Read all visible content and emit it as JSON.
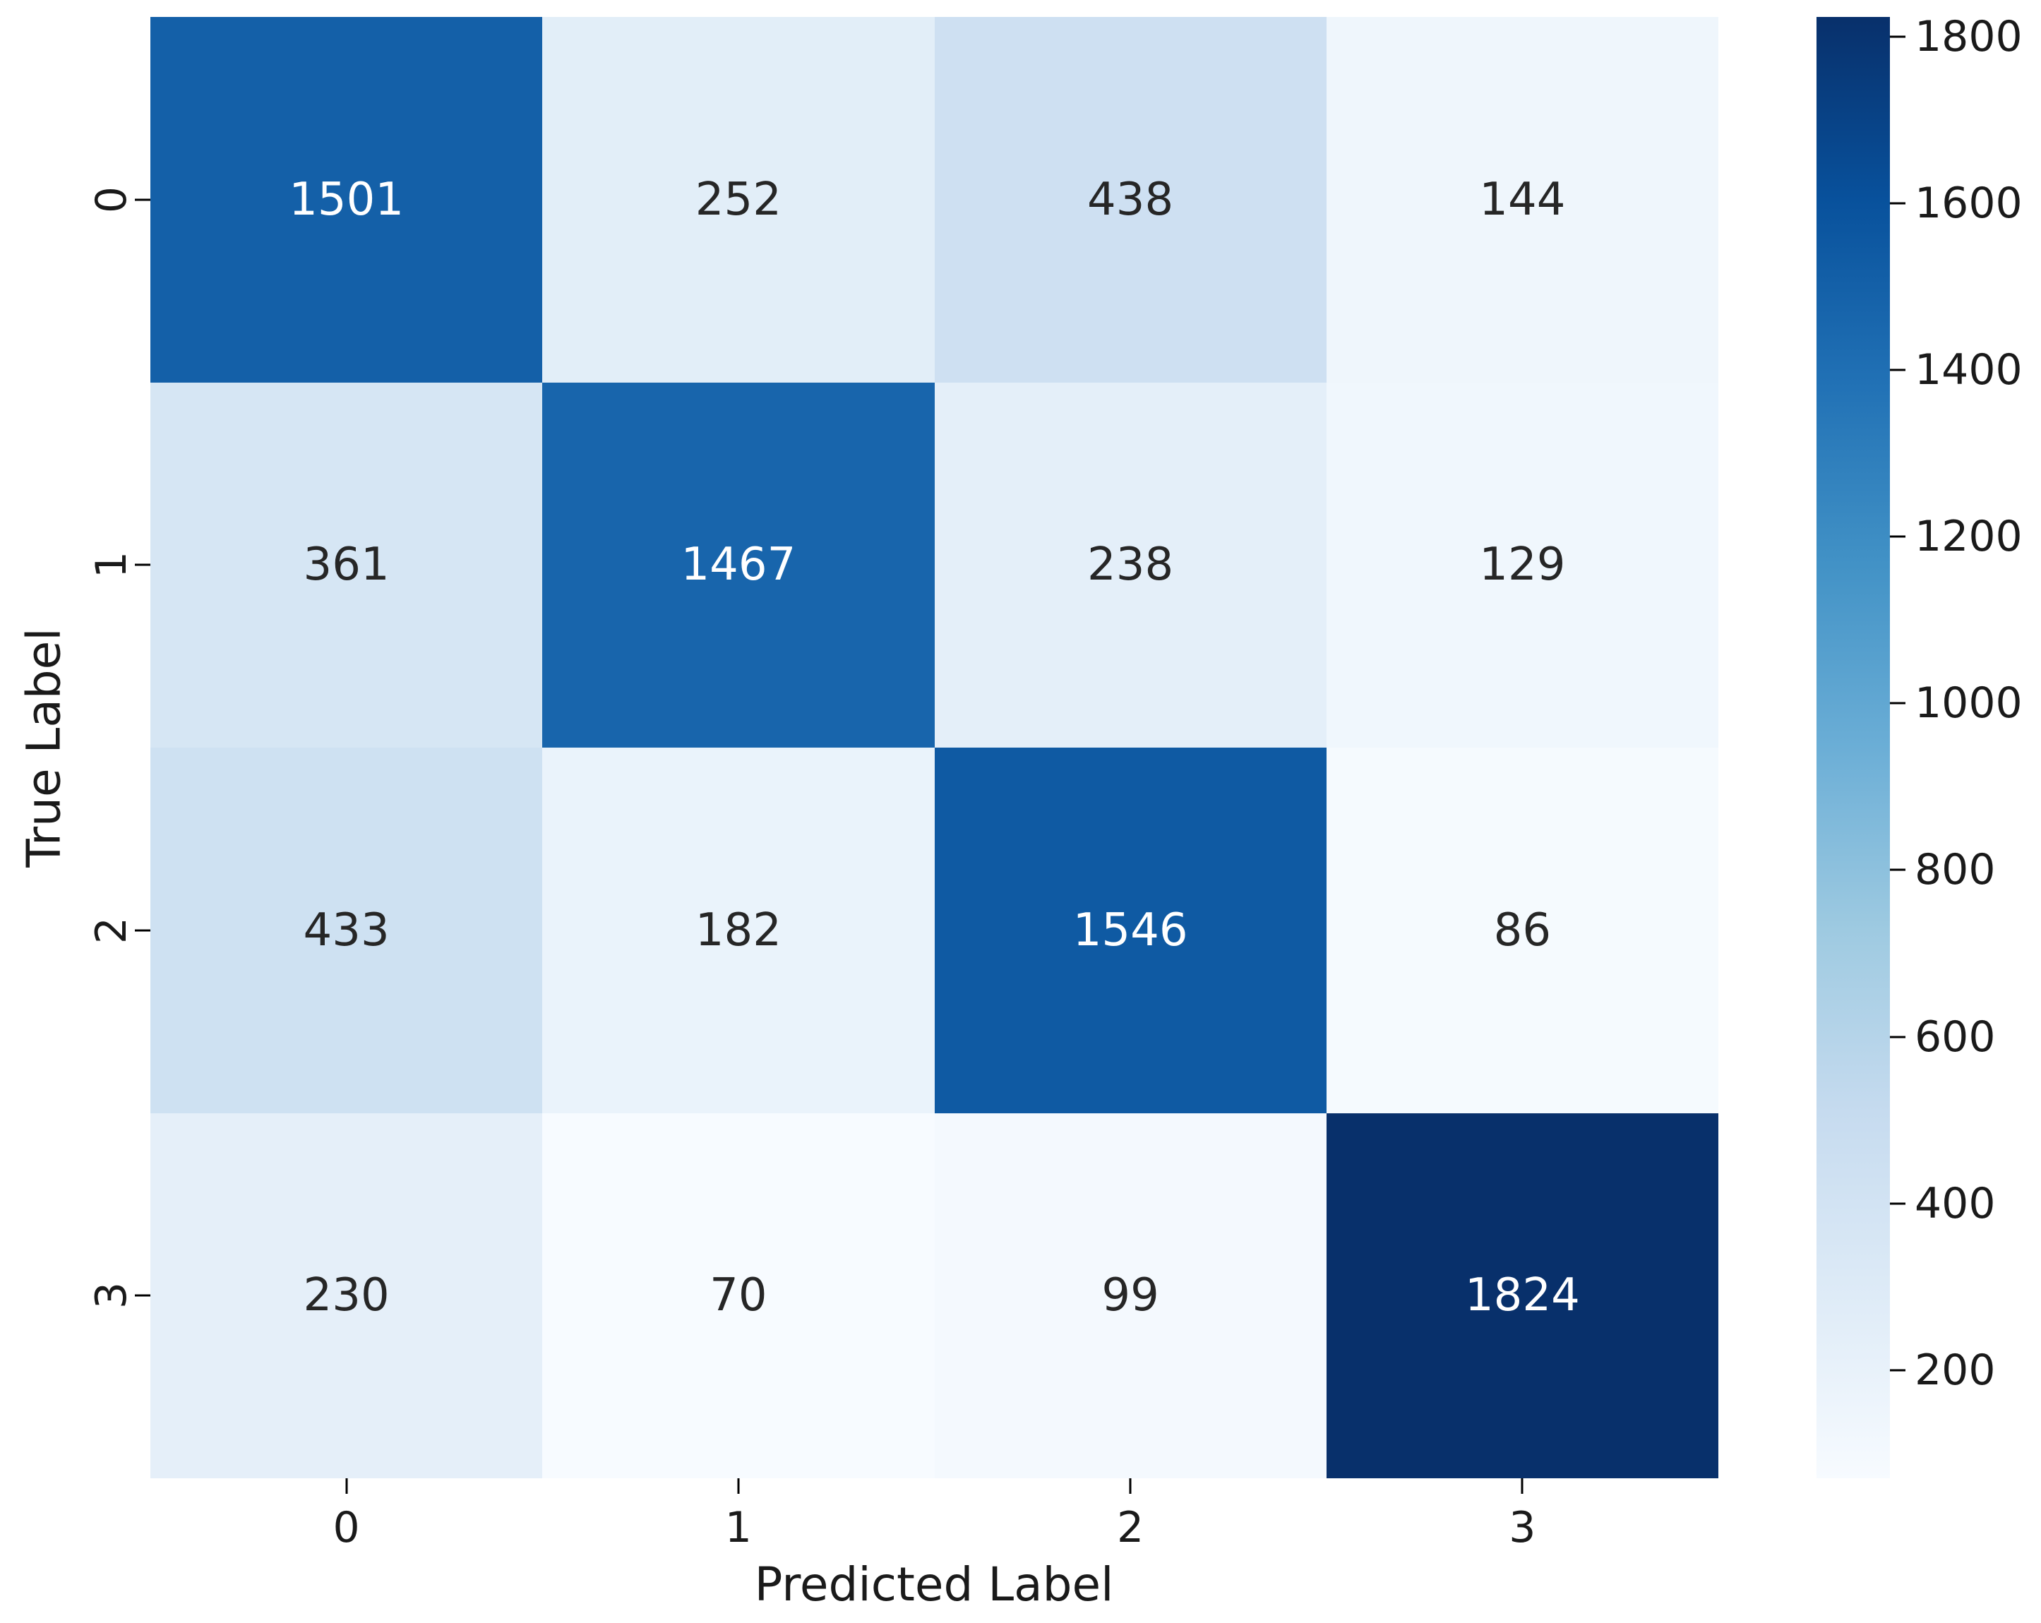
{
  "figure": {
    "background_color": "#ffffff",
    "axis_text_color": "#1a1a1a"
  },
  "chart_data": {
    "type": "heatmap",
    "title": "",
    "xlabel": "Predicted Label",
    "ylabel": "True Label",
    "x_categories": [
      "0",
      "1",
      "2",
      "3"
    ],
    "y_categories": [
      "0",
      "1",
      "2",
      "3"
    ],
    "matrix": [
      [
        1501,
        252,
        438,
        144
      ],
      [
        361,
        1467,
        238,
        129
      ],
      [
        433,
        182,
        1546,
        86
      ],
      [
        230,
        70,
        99,
        1824
      ]
    ],
    "vmin": 70,
    "vmax": 1824,
    "grid": false,
    "colormap": {
      "name": "Blues",
      "stops": [
        {
          "t": 0.0,
          "color": "#f7fbff"
        },
        {
          "t": 0.125,
          "color": "#deebf7"
        },
        {
          "t": 0.25,
          "color": "#c6dbef"
        },
        {
          "t": 0.375,
          "color": "#9ecae1"
        },
        {
          "t": 0.5,
          "color": "#6baed6"
        },
        {
          "t": 0.625,
          "color": "#4292c6"
        },
        {
          "t": 0.75,
          "color": "#2171b5"
        },
        {
          "t": 0.875,
          "color": "#08519c"
        },
        {
          "t": 1.0,
          "color": "#08306b"
        }
      ]
    },
    "colorbar": {
      "position": "right",
      "ticks": [
        200,
        400,
        600,
        800,
        1000,
        1200,
        1400,
        1600,
        1800
      ]
    },
    "annotation_colors": {
      "dark": "#262626",
      "light": "#ffffff"
    }
  }
}
